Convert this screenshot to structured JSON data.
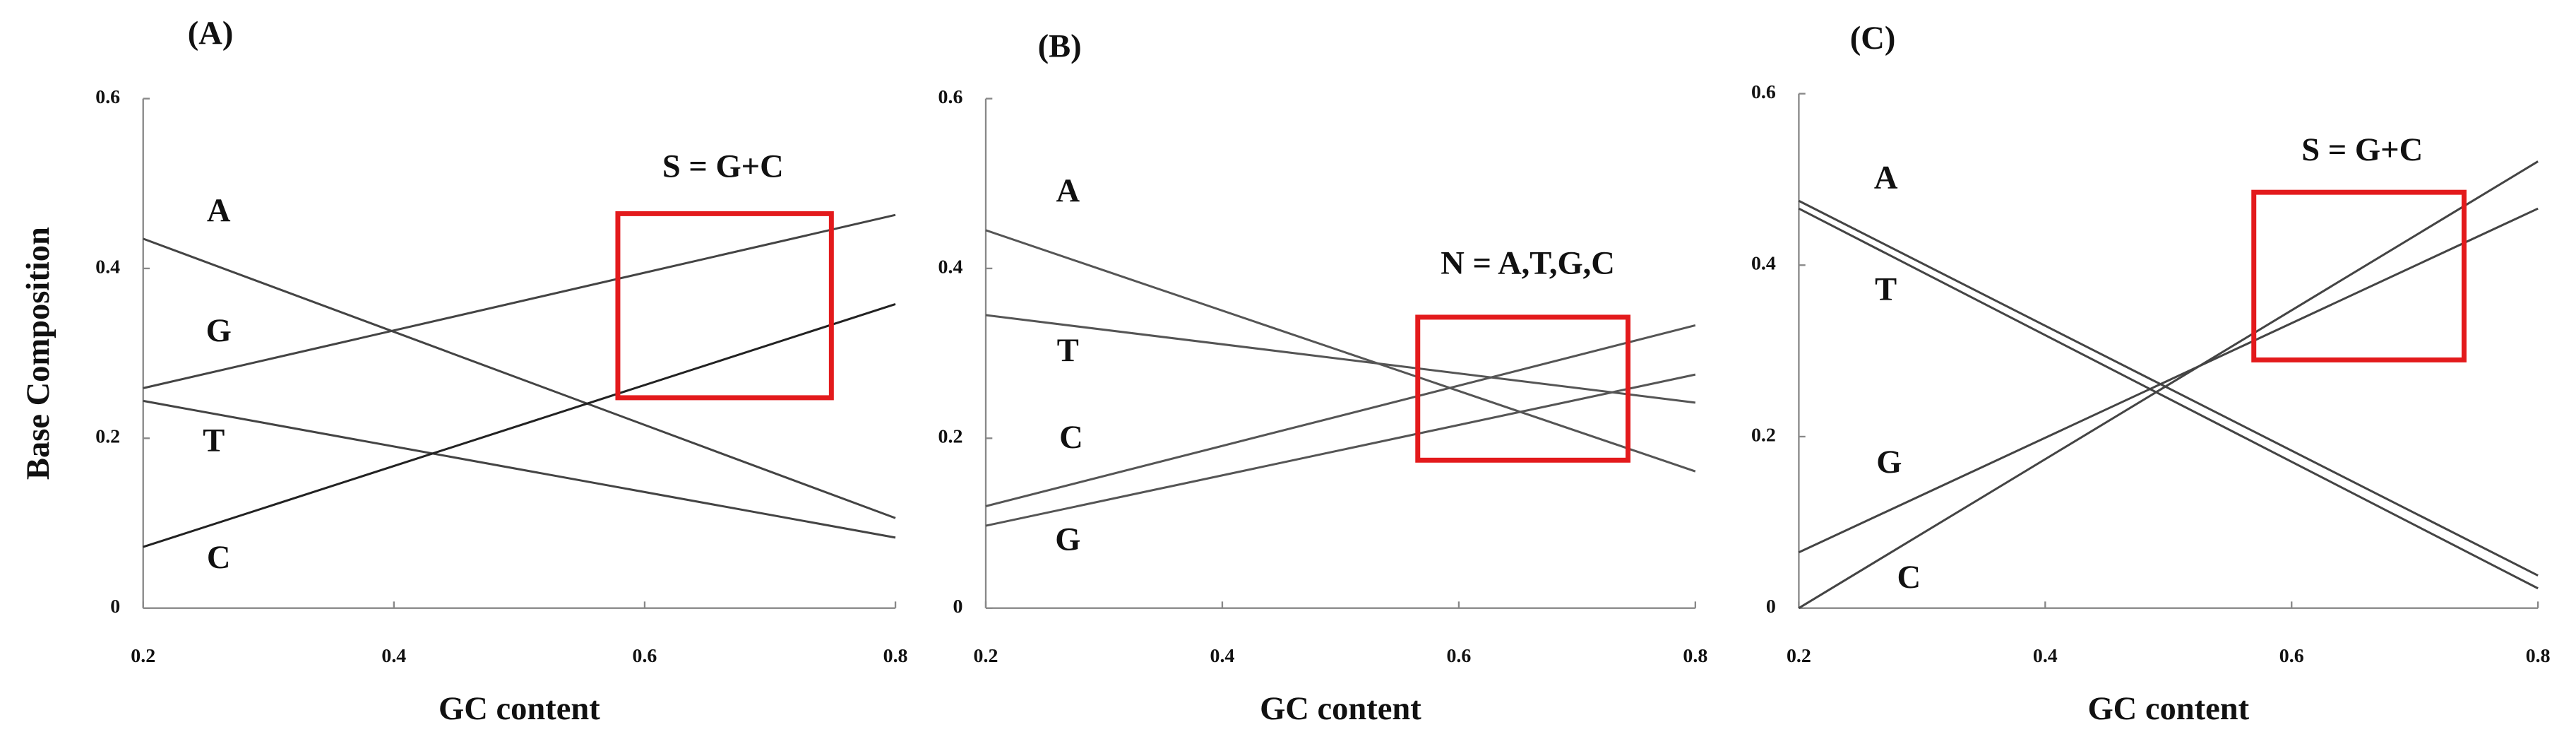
{
  "chart_data": [
    {
      "type": "line",
      "title": "(A)",
      "x_label": "GC content",
      "y_label": "Base Composition",
      "x": [
        0.2,
        0.8
      ],
      "xlim": [
        0.2,
        0.8
      ],
      "ylim": [
        0,
        0.6
      ],
      "xticks": [
        0.2,
        0.4,
        0.6,
        0.8
      ],
      "yticks": [
        0,
        0.2,
        0.4,
        0.6
      ],
      "annotation": "S = G+C",
      "series": [
        {
          "name": "A",
          "color": "#444444",
          "values": [
            0.435,
            0.106
          ]
        },
        {
          "name": "G",
          "color": "#444444",
          "values": [
            0.259,
            0.463
          ]
        },
        {
          "name": "T",
          "color": "#444444",
          "values": [
            0.244,
            0.083
          ]
        },
        {
          "name": "C",
          "color": "#222222",
          "values": [
            0.072,
            0.358
          ]
        }
      ]
    },
    {
      "type": "line",
      "title": "(B)",
      "x_label": "GC content",
      "x": [
        0.2,
        0.8
      ],
      "xlim": [
        0.2,
        0.8
      ],
      "ylim": [
        0,
        0.6
      ],
      "xticks": [
        0.2,
        0.4,
        0.6,
        0.8
      ],
      "yticks": [
        0,
        0.2,
        0.4,
        0.6
      ],
      "annotation": "N = A,T,G,C",
      "series": [
        {
          "name": "A",
          "color": "#555555",
          "values": [
            0.445,
            0.161
          ]
        },
        {
          "name": "T",
          "color": "#555555",
          "values": [
            0.345,
            0.242
          ]
        },
        {
          "name": "C",
          "color": "#555555",
          "values": [
            0.12,
            0.333
          ]
        },
        {
          "name": "G",
          "color": "#555555",
          "values": [
            0.097,
            0.275
          ]
        }
      ]
    },
    {
      "type": "line",
      "title": "(C)",
      "x_label": "GC content",
      "x": [
        0.2,
        0.8
      ],
      "xlim": [
        0.2,
        0.8
      ],
      "ylim": [
        0,
        0.6
      ],
      "xticks": [
        0.2,
        0.4,
        0.6,
        0.8
      ],
      "yticks": [
        0,
        0.2,
        0.4,
        0.6
      ],
      "annotation": "S = G+C",
      "series": [
        {
          "name": "A",
          "color": "#444444",
          "values": [
            0.475,
            0.038
          ]
        },
        {
          "name": "T",
          "color": "#444444",
          "values": [
            0.466,
            0.023
          ]
        },
        {
          "name": "G",
          "color": "#444444",
          "values": [
            0.065,
            0.466
          ]
        },
        {
          "name": "C",
          "color": "#444444",
          "values": [
            0,
            0.521
          ]
        }
      ]
    }
  ]
}
